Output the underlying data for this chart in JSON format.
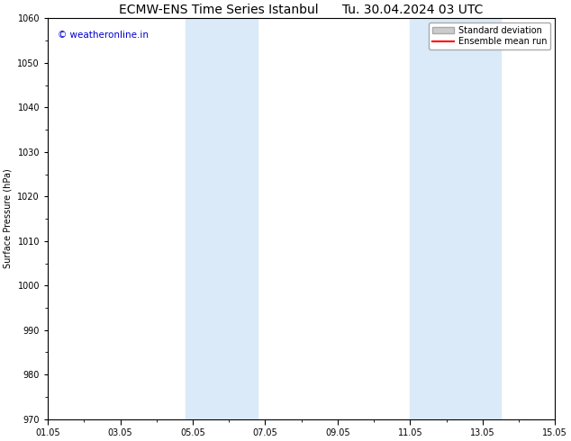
{
  "title": "ECMW-ENS Time Series Istanbul      Tu. 30.04.2024 03 UTC",
  "ylabel": "Surface Pressure (hPa)",
  "ylim": [
    970,
    1060
  ],
  "yticks": [
    970,
    980,
    990,
    1000,
    1010,
    1020,
    1030,
    1040,
    1050,
    1060
  ],
  "xlim": [
    0.0,
    14.0
  ],
  "xtick_positions": [
    0,
    2,
    4,
    6,
    8,
    10,
    12,
    14
  ],
  "xtick_labels": [
    "01.05",
    "03.05",
    "05.05",
    "07.05",
    "09.05",
    "11.05",
    "13.05",
    "15.05"
  ],
  "shaded_bands": [
    {
      "x_start": 3.8,
      "x_end": 5.8
    },
    {
      "x_start": 10.0,
      "x_end": 12.5
    }
  ],
  "shade_color": "#daeaf8",
  "background_color": "#ffffff",
  "watermark_text": "© weatheronline.in",
  "watermark_color": "#0000cc",
  "legend_items": [
    {
      "label": "Standard deviation",
      "color": "#cccccc",
      "linestyle": "-",
      "linewidth": 8
    },
    {
      "label": "Ensemble mean run",
      "color": "#ff0000",
      "linestyle": "-",
      "linewidth": 1.5
    }
  ],
  "title_fontsize": 10,
  "axis_fontsize": 7,
  "tick_fontsize": 7,
  "watermark_fontsize": 7.5,
  "legend_fontsize": 7,
  "spine_color": "#000000"
}
